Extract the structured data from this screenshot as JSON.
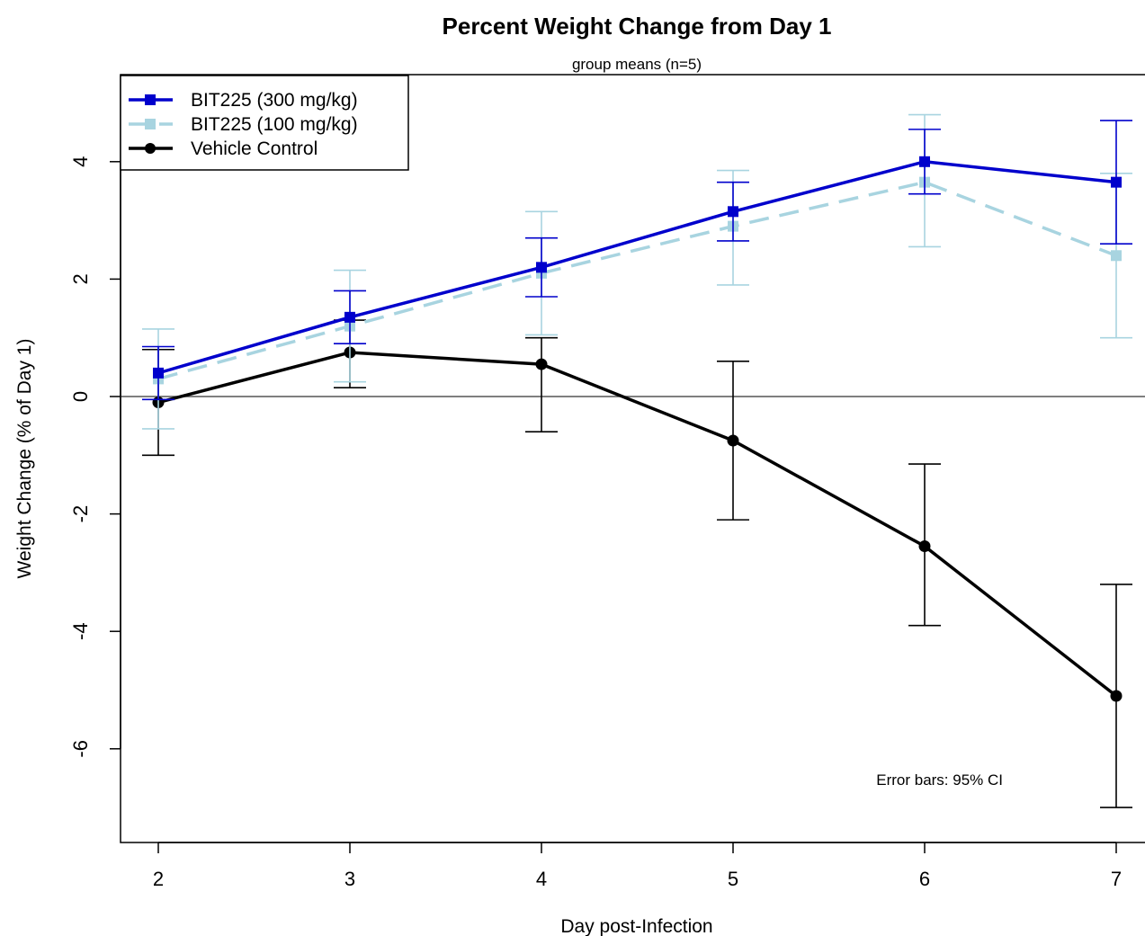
{
  "chart_data": {
    "type": "line",
    "title": "Percent Weight Change from Day 1",
    "subtitle": "group means (n=5)",
    "xlabel": "Day post-Infection",
    "ylabel": "Weight Change (% of Day 1)",
    "x": [
      2,
      3,
      4,
      5,
      6,
      7
    ],
    "xlim": [
      1.8,
      7.15
    ],
    "ylim": [
      -7.5,
      5.6
    ],
    "x_ticks": [
      "2",
      "3",
      "4",
      "5",
      "6",
      "7"
    ],
    "y_ticks": [
      "-6",
      "-4",
      "-2",
      "0",
      "2",
      "4"
    ],
    "y_tick_values": [
      -6,
      -4,
      -2,
      0,
      2,
      4
    ],
    "reference_line_y": 0,
    "note": "Error bars: 95% CI",
    "legend_position": "top-left",
    "grid": false,
    "series": [
      {
        "name": "BIT225 (300 mg/kg)",
        "color": "#0000cc",
        "marker": "square",
        "dash": "solid",
        "values": [
          0.4,
          1.35,
          2.2,
          3.15,
          4.0,
          3.65
        ],
        "ci_low": [
          -0.05,
          0.9,
          1.7,
          2.65,
          3.45,
          2.6
        ],
        "ci_high": [
          0.85,
          1.8,
          2.7,
          3.65,
          4.55,
          4.7
        ]
      },
      {
        "name": "BIT225 (100 mg/kg)",
        "color": "#a8d4e0",
        "marker": "square",
        "dash": "dashed",
        "values": [
          0.3,
          1.2,
          2.1,
          2.9,
          3.65,
          2.4
        ],
        "ci_low": [
          -0.55,
          0.25,
          1.05,
          1.9,
          2.55,
          1.0
        ],
        "ci_high": [
          1.15,
          2.15,
          3.15,
          3.85,
          4.8,
          3.8
        ]
      },
      {
        "name": "Vehicle Control",
        "color": "#000000",
        "marker": "circle",
        "dash": "solid",
        "values": [
          -0.1,
          0.75,
          0.55,
          -0.75,
          -2.55,
          -5.1
        ],
        "ci_low": [
          -1.0,
          0.15,
          -0.6,
          -2.1,
          -3.9,
          -7.0
        ],
        "ci_high": [
          0.8,
          1.3,
          1.0,
          0.6,
          -1.15,
          -3.2
        ]
      }
    ]
  }
}
